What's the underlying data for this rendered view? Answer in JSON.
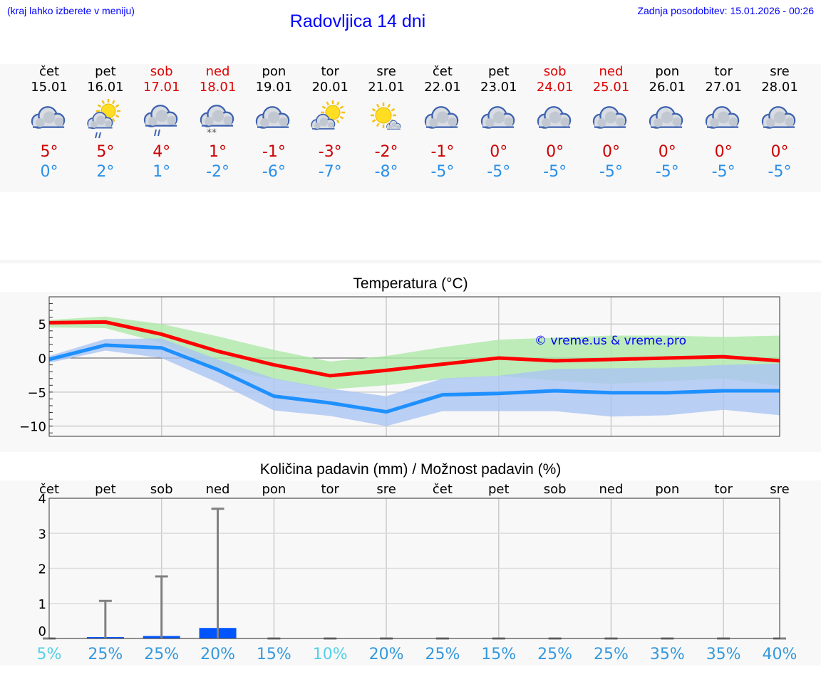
{
  "header": {
    "hint": "(kraj lahko izberete v meniju)",
    "title": "Radovljica 14 dni",
    "updated": "Zadnja posodobitev: 15.01.2026 - 00:26"
  },
  "days": [
    {
      "name": "čet",
      "date": "15.01",
      "weekend": false,
      "icon": "cloudy-icon",
      "max": "5°",
      "min": "0°"
    },
    {
      "name": "pet",
      "date": "16.01",
      "weekend": false,
      "icon": "sun-cloud-rain-icon",
      "max": "5°",
      "min": "2°"
    },
    {
      "name": "sob",
      "date": "17.01",
      "weekend": true,
      "icon": "cloudy-rain-icon",
      "max": "4°",
      "min": "1°"
    },
    {
      "name": "ned",
      "date": "18.01",
      "weekend": true,
      "icon": "cloudy-snow-icon",
      "max": "1°",
      "min": "-2°"
    },
    {
      "name": "pon",
      "date": "19.01",
      "weekend": false,
      "icon": "cloudy-icon",
      "max": "-1°",
      "min": "-6°"
    },
    {
      "name": "tor",
      "date": "20.01",
      "weekend": false,
      "icon": "partly-sunny-icon",
      "max": "-3°",
      "min": "-7°"
    },
    {
      "name": "sre",
      "date": "21.01",
      "weekend": false,
      "icon": "sunny-icon",
      "max": "-2°",
      "min": "-8°"
    },
    {
      "name": "čet",
      "date": "22.01",
      "weekend": false,
      "icon": "cloudy-icon",
      "max": "-1°",
      "min": "-5°"
    },
    {
      "name": "pet",
      "date": "23.01",
      "weekend": false,
      "icon": "cloudy-icon",
      "max": "0°",
      "min": "-5°"
    },
    {
      "name": "sob",
      "date": "24.01",
      "weekend": true,
      "icon": "cloudy-icon",
      "max": "0°",
      "min": "-5°"
    },
    {
      "name": "ned",
      "date": "25.01",
      "weekend": true,
      "icon": "cloudy-icon",
      "max": "0°",
      "min": "-5°"
    },
    {
      "name": "pon",
      "date": "26.01",
      "weekend": false,
      "icon": "cloudy-icon",
      "max": "0°",
      "min": "-5°"
    },
    {
      "name": "tor",
      "date": "27.01",
      "weekend": false,
      "icon": "cloudy-icon",
      "max": "0°",
      "min": "-5°"
    },
    {
      "name": "sre",
      "date": "28.01",
      "weekend": false,
      "icon": "cloudy-icon",
      "max": "0°",
      "min": "-5°"
    }
  ],
  "chart_data": [
    {
      "type": "line",
      "title": "Temperatura (°C)",
      "ylim": [
        -11.5,
        9
      ],
      "yticks": [
        5,
        0,
        -5,
        -10
      ],
      "ytick_labels": [
        "5",
        "0",
        "−5",
        "−10"
      ],
      "watermark": "© vreme.us & vreme.pro",
      "series": [
        {
          "name": "max",
          "color": "#ff0000",
          "values": [
            5.2,
            5.3,
            3.5,
            1.0,
            -1.0,
            -2.6,
            -1.8,
            -0.9,
            0,
            -0.4,
            -0.2,
            0,
            0.2,
            -0.4
          ],
          "band_upper": [
            5.6,
            6.1,
            5.0,
            3.2,
            1.2,
            -0.5,
            0.3,
            1.6,
            2.7,
            3.0,
            3.3,
            3.3,
            3.1,
            3.3
          ],
          "band_lower": [
            4.5,
            4.4,
            2.2,
            -1.5,
            -3.1,
            -4.6,
            -4.0,
            -3.1,
            -2.6,
            -3.3,
            -3.8,
            -3.4,
            -3.0,
            -4.1
          ],
          "band_color": "#aee8a8"
        },
        {
          "name": "min",
          "color": "#1e90ff",
          "values": [
            -0.2,
            1.9,
            1.5,
            -1.7,
            -5.6,
            -6.6,
            -7.9,
            -5.4,
            -5.2,
            -4.8,
            -5.1,
            -5.1,
            -4.8,
            -4.8
          ],
          "band_upper": [
            0.3,
            2.8,
            2.9,
            -0.2,
            -3.0,
            -4.5,
            -5.6,
            -3.0,
            -2.6,
            -1.6,
            -1.5,
            -1.4,
            -1.0,
            -0.8
          ],
          "band_lower": [
            -0.7,
            1.1,
            0,
            -3.6,
            -7.7,
            -8.5,
            -10.0,
            -7.8,
            -7.8,
            -7.8,
            -8.6,
            -8.4,
            -7.6,
            -8.4
          ],
          "band_color": "#aac4f2"
        }
      ]
    },
    {
      "type": "bar",
      "title": "Količina padavin (mm) / Možnost padavin (%)",
      "ylim": [
        0,
        4
      ],
      "yticks": [
        0,
        1,
        2,
        3,
        4
      ],
      "categories": [
        "čet",
        "pet",
        "sob",
        "ned",
        "pon",
        "tor",
        "sre",
        "čet",
        "pet",
        "sob",
        "ned",
        "pon",
        "tor",
        "sre"
      ],
      "values": [
        0,
        0.04,
        0.07,
        0.3,
        0,
        0,
        0,
        0,
        0,
        0,
        0,
        0,
        0,
        0
      ],
      "error_max": [
        0,
        1.07,
        1.77,
        3.7,
        0,
        0,
        0,
        0,
        0,
        0,
        0,
        0,
        0,
        0
      ],
      "probability": [
        "5%",
        "25%",
        "25%",
        "20%",
        "15%",
        "10%",
        "20%",
        "25%",
        "15%",
        "25%",
        "25%",
        "35%",
        "35%",
        "40%"
      ],
      "prob_values": [
        5,
        25,
        25,
        20,
        15,
        10,
        20,
        25,
        15,
        25,
        25,
        35,
        35,
        40
      ]
    }
  ],
  "colors": {
    "link": "#0000ff",
    "weekend": "#dd0000",
    "max": "#cc0000",
    "min": "#2a8fe8",
    "bar": "#0055ff",
    "prob_low": "#55d0e6",
    "prob": "#3399dd"
  }
}
